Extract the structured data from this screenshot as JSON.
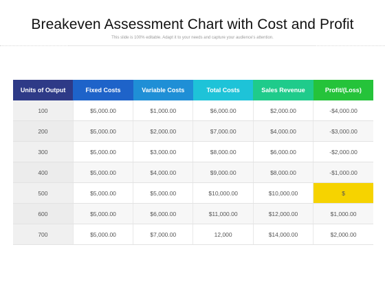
{
  "header": {
    "title": "Breakeven Assessment Chart with Cost and Profit",
    "subtitle": "This slide is 100% editable. Adapt it to your needs and capture your audience's attention."
  },
  "table": {
    "columns": [
      {
        "label": "Units of Output",
        "color": "#2e3a87"
      },
      {
        "label": "Fixed Costs",
        "color": "#1e63c9"
      },
      {
        "label": "Variable Costs",
        "color": "#1f8fd6"
      },
      {
        "label": "Total Costs",
        "color": "#1ec3d8"
      },
      {
        "label": "Sales Revenue",
        "color": "#1fcb8b"
      },
      {
        "label": "Profit/(Loss)",
        "color": "#25c33a"
      }
    ],
    "highlight_color": "#f6d300",
    "rows": [
      [
        "100",
        "$5,000.00",
        "$1,000.00",
        "$6,000.00",
        "$2,000.00",
        "-$4,000.00"
      ],
      [
        "200",
        "$5,000.00",
        "$2,000.00",
        "$7,000.00",
        "$4,000.00",
        "-$3,000.00"
      ],
      [
        "300",
        "$5,000.00",
        "$3,000.00",
        "$8,000.00",
        "$6,000.00",
        "-$2,000.00"
      ],
      [
        "400",
        "$5,000.00",
        "$4,000.00",
        "$9,000.00",
        "$8,000.00",
        "-$1,000.00"
      ],
      [
        "500",
        "$5,000.00",
        "$5,000.00",
        "$10,000.00",
        "$10,000.00",
        "$"
      ],
      [
        "600",
        "$5,000.00",
        "$6,000.00",
        "$11,000.00",
        "$12,000.00",
        "$1,000.00"
      ],
      [
        "700",
        "$5,000.00",
        "$7,000.00",
        "12,000",
        "$14,000.00",
        "$2,000.00"
      ]
    ]
  }
}
